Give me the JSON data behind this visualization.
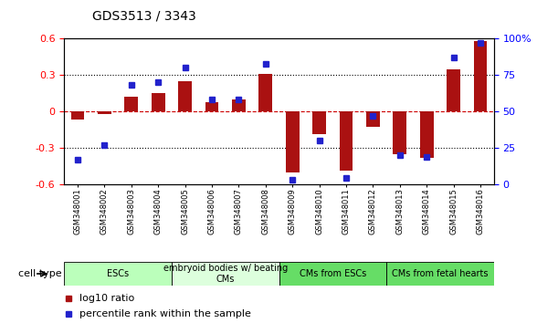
{
  "title": "GDS3513 / 3343",
  "samples": [
    "GSM348001",
    "GSM348002",
    "GSM348003",
    "GSM348004",
    "GSM348005",
    "GSM348006",
    "GSM348007",
    "GSM348008",
    "GSM348009",
    "GSM348010",
    "GSM348011",
    "GSM348012",
    "GSM348013",
    "GSM348014",
    "GSM348015",
    "GSM348016"
  ],
  "log10_ratio": [
    -0.07,
    -0.02,
    0.12,
    0.15,
    0.25,
    0.08,
    0.1,
    0.31,
    -0.5,
    -0.19,
    -0.49,
    -0.13,
    -0.35,
    -0.38,
    0.35,
    0.58
  ],
  "percentile_rank": [
    17,
    27,
    68,
    70,
    80,
    58,
    58,
    83,
    3,
    30,
    4,
    47,
    20,
    19,
    87,
    97
  ],
  "ylim_left": [
    -0.6,
    0.6
  ],
  "ylim_right": [
    0,
    100
  ],
  "bar_color": "#aa1111",
  "dot_color": "#2222cc",
  "zero_line_color": "#cc0000",
  "bg_color": "#ffffff",
  "plot_bg": "#ffffff",
  "cell_groups": [
    {
      "label": "ESCs",
      "start": 0,
      "end": 3,
      "color": "#bbffbb"
    },
    {
      "label": "embryoid bodies w/ beating\nCMs",
      "start": 4,
      "end": 7,
      "color": "#ddffdd"
    },
    {
      "label": "CMs from ESCs",
      "start": 8,
      "end": 11,
      "color": "#66dd66"
    },
    {
      "label": "CMs from fetal hearts",
      "start": 12,
      "end": 15,
      "color": "#66dd66"
    }
  ],
  "legend_red_label": "log10 ratio",
  "legend_blue_label": "percentile rank within the sample",
  "cell_type_label": "cell type",
  "right_axis_ticks": [
    0,
    25,
    50,
    75,
    100
  ],
  "right_axis_labels": [
    "0",
    "25",
    "50",
    "75",
    "100%"
  ]
}
